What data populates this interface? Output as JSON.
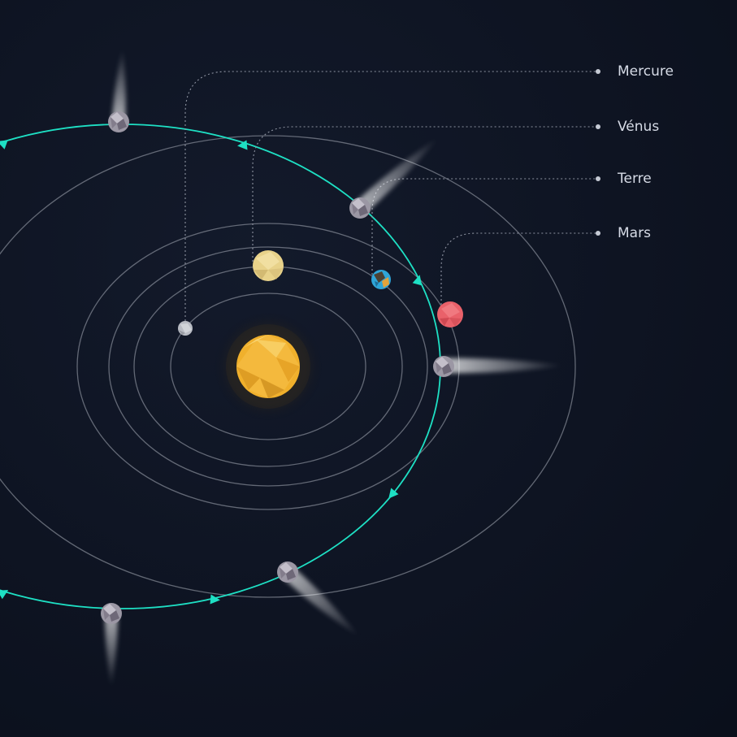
{
  "colors": {
    "background": "#0d1322",
    "orbit": "#a8adb8",
    "comet_orbit": "#1ee0c4",
    "leader": "#8d93a1",
    "sun": "#f0b02c",
    "mercury": "#b9bcc4",
    "venus": "#e8d28a",
    "earth": "#2fa5d8",
    "mars": "#e9616a",
    "comet": "#9b97a4"
  },
  "planets": [
    {
      "name": "mercury",
      "label": "Mercure",
      "icon": "mercury-icon"
    },
    {
      "name": "venus",
      "label": "Vénus",
      "icon": "venus-icon"
    },
    {
      "name": "earth",
      "label": "Terre",
      "icon": "earth-icon"
    },
    {
      "name": "mars",
      "label": "Mars",
      "icon": "mars-icon"
    }
  ],
  "sun": {
    "icon": "sun-icon"
  },
  "comet": {
    "icon": "comet-icon"
  }
}
